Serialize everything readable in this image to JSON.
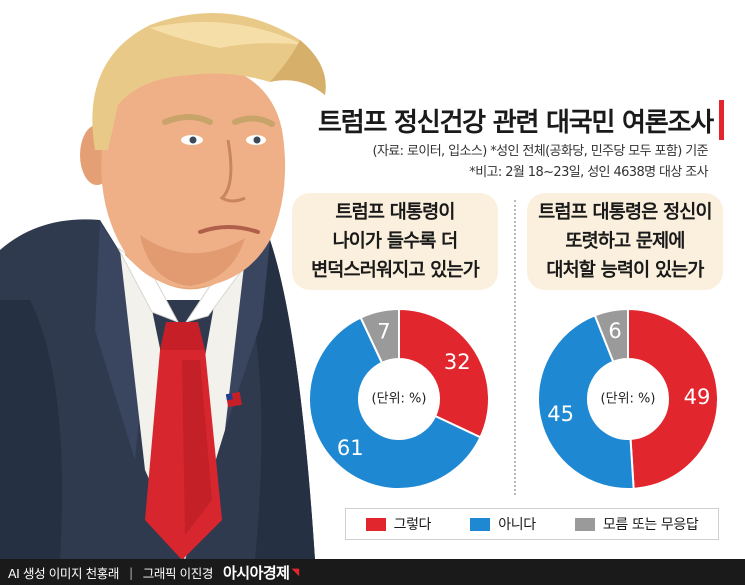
{
  "title": "트럼프 정신건강 관련 대국민 여론조사",
  "notes": {
    "source": "(자료: 로이터, 입소스) *성인 전체(공화당, 민주당 모두 포함) 기준",
    "note": "*비고: 2월 18~23일, 성인 4638명 대상 조사"
  },
  "colors": {
    "yes": "#e1262d",
    "no": "#1e88d2",
    "unknown": "#9a9a9a"
  },
  "chart_data": [
    {
      "type": "pie",
      "question_lines": [
        "트럼프 대통령이",
        "나이가 들수록 더",
        "변덕스러워지고 있는가"
      ],
      "center_label": "(단위: %)",
      "slices": [
        {
          "label": "그렇다",
          "value": 32,
          "color": "#e1262d"
        },
        {
          "label": "아니다",
          "value": 61,
          "color": "#1e88d2"
        },
        {
          "label": "모름 또는 무응답",
          "value": 7,
          "color": "#9a9a9a"
        }
      ]
    },
    {
      "type": "pie",
      "question_lines": [
        "트럼프 대통령은 정신이",
        "또렷하고 문제에",
        "대처할 능력이 있는가"
      ],
      "center_label": "(단위: %)",
      "slices": [
        {
          "label": "그렇다",
          "value": 49,
          "color": "#e1262d"
        },
        {
          "label": "아니다",
          "value": 45,
          "color": "#1e88d2"
        },
        {
          "label": "모름 또는 무응답",
          "value": 6,
          "color": "#9a9a9a"
        }
      ]
    }
  ],
  "legend": [
    {
      "label": "그렇다",
      "color": "#e1262d"
    },
    {
      "label": "아니다",
      "color": "#1e88d2"
    },
    {
      "label": "모름 또는 무응답",
      "color": "#9a9a9a"
    }
  ],
  "footer": {
    "credit_image": "AI 생성 이미지 천홍래",
    "separator": "|",
    "credit_graphic": "그래픽 이진경",
    "brand": "아시아경제"
  }
}
